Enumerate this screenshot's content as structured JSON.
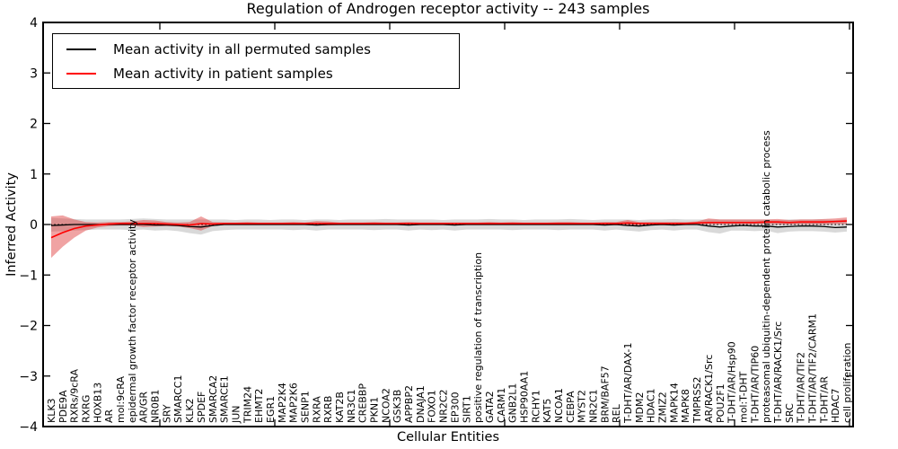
{
  "chart_data": {
    "type": "line",
    "title": "Regulation of Androgen receptor activity -- 243 samples",
    "xlabel": "Cellular Entities",
    "ylabel": "Inferred Activity",
    "ylim": [
      -4,
      4
    ],
    "ytick_labels": [
      "4",
      "3",
      "2",
      "1",
      "0",
      "−1",
      "−2",
      "−3",
      "−4"
    ],
    "ytick_values": [
      4,
      3,
      2,
      1,
      0,
      -1,
      -2,
      -3,
      -4
    ],
    "grid": false,
    "legend": {
      "position": "upper-left",
      "entries": [
        "Mean activity in all permuted samples",
        "Mean activity in patient samples"
      ]
    },
    "zero_line": {
      "style": "dashed",
      "color": "#000000",
      "y": 0
    },
    "categories": [
      "KLK3",
      "PDE9A",
      "RXRs/9cRA",
      "RXRG",
      "HOXB13",
      "AR",
      "mol:9cRA",
      "epidermal growth factor receptor activity",
      "AR/GR",
      "NR0B1",
      "SRY",
      "SMARCC1",
      "KLK2",
      "SPDEF",
      "SMARCA2",
      "SMARCE1",
      "JUN",
      "TRIM24",
      "EHMT2",
      "EGR1",
      "MAP2K4",
      "MAP2K6",
      "SENP1",
      "RXRA",
      "RXRB",
      "KAT2B",
      "NR3C1",
      "CREBBP",
      "PKN1",
      "NCOA2",
      "GSK3B",
      "APPBP2",
      "DNAJA1",
      "FOXO1",
      "NR2C2",
      "EP300",
      "SIRT1",
      "positive regulation of transcription",
      "GATA2",
      "CARM1",
      "GNB2L1",
      "HSP90AA1",
      "RCHY1",
      "KAT5",
      "NCOA1",
      "CEBPA",
      "MYST2",
      "NR2C1",
      "BRM/BAF57",
      "REL",
      "T-DHT/AR/DAX-1",
      "MDM2",
      "HDAC1",
      "ZMIZ2",
      "MAPK14",
      "MAPK8",
      "TMPRSS2",
      "AR/RACK1/Src",
      "POU2F1",
      "T-DHT/AR/Hsp90",
      "mol:T-DHT",
      "T-DHT/AR/TIP60",
      "proteasomal ubiquitin-dependent protein catabolic process",
      "T-DHT/AR/RACK1/Src",
      "SRC",
      "T-DHT/AR/TIF2",
      "T-DHT/AR/TIF2/CARM1",
      "T-DHT/AR",
      "HDAC7",
      "cell proliferation"
    ],
    "series": [
      {
        "name": "Mean activity in all permuted samples",
        "color": "#000000",
        "values": [
          -0.02,
          -0.01,
          0,
          0,
          0,
          0,
          0,
          0,
          0,
          -0.01,
          -0.01,
          -0.02,
          -0.04,
          -0.05,
          -0.02,
          0,
          0,
          0,
          0,
          0,
          0,
          0,
          0,
          -0.01,
          0,
          0,
          0,
          0,
          0,
          0,
          0,
          -0.01,
          0,
          0,
          0,
          -0.01,
          0,
          0,
          0,
          0,
          0,
          0,
          0,
          0,
          0,
          0,
          0,
          0,
          -0.01,
          0,
          -0.02,
          -0.03,
          -0.01,
          0,
          -0.01,
          0,
          0,
          -0.03,
          -0.05,
          -0.03,
          -0.02,
          -0.03,
          -0.03,
          -0.05,
          -0.04,
          -0.03,
          -0.03,
          -0.04,
          -0.06,
          -0.05
        ],
        "band": {
          "color": "#000000",
          "opacity": 0.15,
          "upper": [
            0.13,
            0.12,
            0.11,
            0.1,
            0.1,
            0.1,
            0.1,
            0.11,
            0.12,
            0.11,
            0.1,
            0.1,
            0.1,
            0.1,
            0.1,
            0.1,
            0.09,
            0.1,
            0.1,
            0.09,
            0.1,
            0.1,
            0.09,
            0.1,
            0.1,
            0.09,
            0.1,
            0.1,
            0.1,
            0.11,
            0.1,
            0.1,
            0.1,
            0.1,
            0.09,
            0.1,
            0.1,
            0.1,
            0.11,
            0.1,
            0.1,
            0.09,
            0.1,
            0.1,
            0.1,
            0.11,
            0.1,
            0.09,
            0.1,
            0.1,
            0.1,
            0.09,
            0.1,
            0.1,
            0.11,
            0.1,
            0.1,
            0.1,
            0.1,
            0.1,
            0.1,
            0.1,
            0.1,
            0.09,
            0.1,
            0.1,
            0.1,
            0.1,
            0.09,
            0.1
          ],
          "lower": [
            -0.14,
            -0.13,
            -0.12,
            -0.11,
            -0.1,
            -0.1,
            -0.1,
            -0.11,
            -0.1,
            -0.12,
            -0.11,
            -0.13,
            -0.17,
            -0.2,
            -0.13,
            -0.11,
            -0.1,
            -0.1,
            -0.1,
            -0.1,
            -0.1,
            -0.11,
            -0.1,
            -0.12,
            -0.1,
            -0.1,
            -0.1,
            -0.1,
            -0.11,
            -0.1,
            -0.1,
            -0.12,
            -0.1,
            -0.11,
            -0.1,
            -0.12,
            -0.1,
            -0.1,
            -0.1,
            -0.1,
            -0.11,
            -0.1,
            -0.1,
            -0.1,
            -0.11,
            -0.1,
            -0.1,
            -0.1,
            -0.12,
            -0.1,
            -0.12,
            -0.14,
            -0.11,
            -0.1,
            -0.12,
            -0.1,
            -0.1,
            -0.15,
            -0.18,
            -0.12,
            -0.12,
            -0.13,
            -0.12,
            -0.17,
            -0.14,
            -0.13,
            -0.13,
            -0.14,
            -0.16,
            -0.14
          ]
        }
      },
      {
        "name": "Mean activity in patient samples",
        "color": "#ff0000",
        "values": [
          -0.26,
          -0.16,
          -0.08,
          -0.03,
          -0.01,
          0.01,
          0.02,
          0.02,
          0.02,
          0.02,
          0.01,
          0,
          -0.01,
          0.02,
          0.01,
          0.02,
          0.02,
          0.02,
          0.02,
          0.02,
          0.02,
          0.02,
          0.02,
          0.02,
          0.02,
          0.02,
          0.02,
          0.02,
          0.02,
          0.02,
          0.02,
          0.02,
          0.02,
          0.02,
          0.02,
          0.02,
          0.02,
          0.02,
          0.02,
          0.02,
          0.02,
          0.02,
          0.02,
          0.02,
          0.02,
          0.02,
          0.02,
          0.02,
          0.02,
          0.02,
          0.03,
          0.02,
          0.02,
          0.02,
          0.02,
          0.02,
          0.03,
          0.04,
          0.04,
          0.04,
          0.04,
          0.04,
          0.05,
          0.05,
          0.04,
          0.05,
          0.05,
          0.05,
          0.06,
          0.07
        ],
        "band": {
          "color": "#dd3333",
          "opacity": 0.45,
          "upper": [
            0.16,
            0.18,
            0.1,
            0.05,
            0.04,
            0.05,
            0.05,
            0.06,
            0.09,
            0.08,
            0.05,
            0.04,
            0.05,
            0.16,
            0.05,
            0.04,
            0.04,
            0.05,
            0.04,
            0.04,
            0.04,
            0.05,
            0.04,
            0.07,
            0.06,
            0.04,
            0.04,
            0.04,
            0.05,
            0.04,
            0.04,
            0.05,
            0.04,
            0.04,
            0.04,
            0.04,
            0.04,
            0.04,
            0.05,
            0.04,
            0.05,
            0.04,
            0.04,
            0.04,
            0.05,
            0.05,
            0.04,
            0.04,
            0.05,
            0.05,
            0.09,
            0.05,
            0.05,
            0.05,
            0.05,
            0.05,
            0.06,
            0.12,
            0.1,
            0.1,
            0.1,
            0.1,
            0.1,
            0.11,
            0.09,
            0.1,
            0.1,
            0.11,
            0.12,
            0.14
          ],
          "lower": [
            -0.66,
            -0.44,
            -0.26,
            -0.12,
            -0.06,
            -0.03,
            -0.02,
            -0.02,
            -0.05,
            -0.04,
            -0.03,
            -0.04,
            -0.07,
            -0.12,
            -0.03,
            -0.01,
            -0.01,
            -0.01,
            -0.01,
            -0.01,
            -0.01,
            -0.01,
            -0.01,
            -0.02,
            -0.02,
            -0.01,
            -0.01,
            -0.01,
            -0.01,
            -0.01,
            -0.01,
            -0.01,
            -0.01,
            -0.01,
            -0.01,
            -0.01,
            -0.01,
            -0.01,
            -0.01,
            -0.01,
            -0.01,
            -0.01,
            -0.01,
            -0.01,
            -0.01,
            -0.01,
            -0.01,
            -0.01,
            -0.01,
            -0.01,
            -0.03,
            -0.01,
            -0.01,
            -0.01,
            -0.01,
            -0.01,
            0,
            0,
            0,
            0,
            0,
            0,
            0.01,
            0,
            0,
            0,
            0,
            0,
            0.01,
            0.01
          ]
        }
      }
    ]
  }
}
